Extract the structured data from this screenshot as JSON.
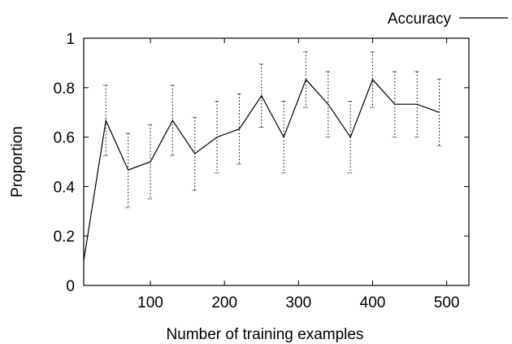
{
  "chart_data": {
    "type": "line",
    "xlabel": "Number of training examples",
    "ylabel": "Proportion",
    "xlim": [
      10,
      530
    ],
    "ylim": [
      0,
      1
    ],
    "x_ticks": [
      100,
      200,
      300,
      400,
      500
    ],
    "y_ticks": [
      0,
      0.2,
      0.4,
      0.6,
      0.8,
      1
    ],
    "x_tick_labels": [
      "100",
      "200",
      "300",
      "400",
      "500"
    ],
    "y_tick_labels": [
      "0",
      "0.2",
      "0.4",
      "0.6",
      "0.8",
      "1"
    ],
    "grid": false,
    "legend_position": "top-right",
    "series": [
      {
        "name": "Accuracy",
        "color": "#000000",
        "x": [
          10,
          40,
          70,
          100,
          130,
          160,
          190,
          220,
          250,
          280,
          310,
          340,
          370,
          400,
          430,
          460,
          490
        ],
        "y": [
          0.1,
          0.667,
          0.467,
          0.5,
          0.667,
          0.533,
          0.6,
          0.633,
          0.767,
          0.6,
          0.833,
          0.733,
          0.6,
          0.833,
          0.733,
          0.733,
          0.7
        ],
        "error_low": [
          null,
          0.525,
          0.315,
          0.35,
          0.525,
          0.385,
          0.455,
          0.49,
          0.64,
          0.455,
          0.72,
          0.6,
          0.455,
          0.72,
          0.6,
          0.6,
          0.565
        ],
        "error_high": [
          null,
          0.81,
          0.615,
          0.65,
          0.81,
          0.68,
          0.745,
          0.775,
          0.895,
          0.745,
          0.945,
          0.865,
          0.745,
          0.945,
          0.865,
          0.865,
          0.835
        ]
      }
    ]
  }
}
